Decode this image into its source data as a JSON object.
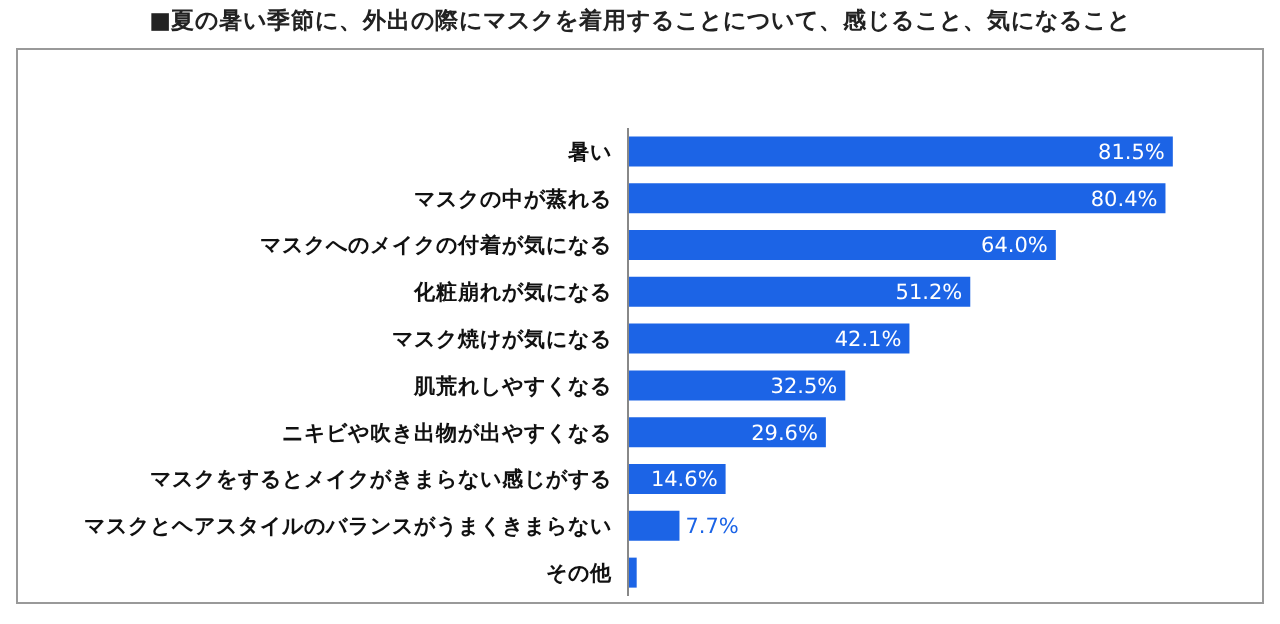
{
  "chart_data": {
    "type": "bar",
    "orientation": "horizontal",
    "title": "■夏の暑い季節に、外出の際にマスクを着用することについて、感じること、気になること",
    "categories": [
      "暑い",
      "マスクの中が蒸れる",
      "マスクへのメイクの付着が気になる",
      "化粧崩れが気になる",
      "マスク焼けが気になる",
      "肌荒れしやすくなる",
      "ニキビや吹き出物が出やすくなる",
      "マスクをするとメイクがきまらない感じがする",
      "マスクとヘアスタイルのバランスがうまくきまらない",
      "その他"
    ],
    "values": [
      81.5,
      80.4,
      64.0,
      51.2,
      42.1,
      32.5,
      29.6,
      14.6,
      7.7,
      1.3
    ],
    "value_labels": [
      "81.5%",
      "80.4%",
      "64.0%",
      "51.2%",
      "42.1%",
      "32.5%",
      "29.6%",
      "14.6%",
      "7.7%",
      null
    ],
    "color": "#1c64e6"
  }
}
